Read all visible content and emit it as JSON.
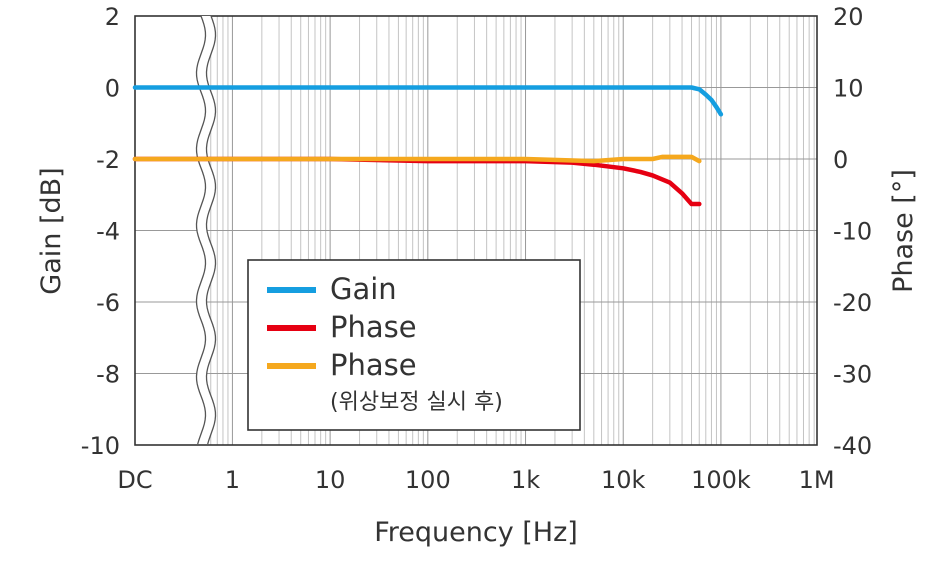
{
  "chart_data": {
    "type": "line",
    "xlabel": "Frequency [Hz]",
    "ylabel": "Gain [dB]",
    "y2label": "Phase [°]",
    "x_scale": "log",
    "x_axis_break_after": "DC",
    "xticks": [
      "DC",
      "1",
      "10",
      "100",
      "1k",
      "10k",
      "100k",
      "1M"
    ],
    "ylim": [
      -10,
      2
    ],
    "yticks": [
      "2",
      "0",
      "-2",
      "-4",
      "-6",
      "-8",
      "-10"
    ],
    "y2lim": [
      -40,
      20
    ],
    "y2ticks": [
      "20",
      "10",
      "0",
      "-10",
      "-20",
      "-30",
      "-40"
    ],
    "grid": true,
    "legend_position": "center-left",
    "series": [
      {
        "name": "Gain",
        "axis": "left",
        "color": "#159ee0",
        "x": [
          "DC",
          0.3,
          1,
          10,
          100,
          1000,
          10000,
          50000,
          60000,
          70000,
          80000,
          90000,
          100000
        ],
        "y": [
          0,
          0,
          0,
          0,
          0,
          0,
          0,
          0,
          -0.05,
          -0.2,
          -0.35,
          -0.55,
          -0.75
        ]
      },
      {
        "name": "Phase",
        "axis": "right",
        "color": "#e60012",
        "x": [
          "DC",
          0.3,
          1,
          10,
          100,
          1000,
          3000,
          5000,
          10000,
          15000,
          20000,
          30000,
          40000,
          50000,
          60000
        ],
        "y": [
          0,
          0,
          0,
          0,
          -0.3,
          -0.3,
          -0.5,
          -0.8,
          -1.3,
          -1.8,
          -2.3,
          -3.3,
          -4.8,
          -6.3,
          -6.3
        ]
      },
      {
        "name": "Phase",
        "subtitle": "(위상보정 실시 후)",
        "axis": "right",
        "color": "#f5a81e",
        "x": [
          "DC",
          0.3,
          1,
          10,
          100,
          1000,
          5000,
          10000,
          20000,
          25000,
          40000,
          50000,
          60000
        ],
        "y": [
          0,
          0,
          0,
          0,
          0,
          0,
          -0.3,
          0,
          0,
          0.3,
          0.3,
          0.3,
          -0.3
        ]
      }
    ]
  }
}
